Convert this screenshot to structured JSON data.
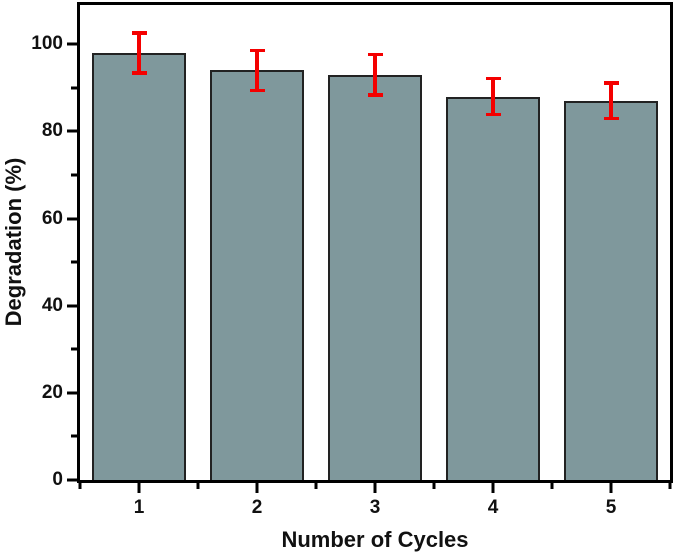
{
  "chart_data": {
    "type": "bar",
    "title": "",
    "xlabel": "Number of Cycles",
    "ylabel": "Degradation (%)",
    "categories": [
      "1",
      "2",
      "3",
      "4",
      "5"
    ],
    "values": [
      98,
      94,
      93,
      88,
      87
    ],
    "error_bars": [
      5,
      5,
      5,
      4.5,
      4.5
    ],
    "xlim": [
      0.5,
      5.5
    ],
    "ylim": [
      0,
      109
    ],
    "y_major_ticks": [
      0,
      20,
      40,
      60,
      80,
      100
    ],
    "y_minor_ticks": [
      10,
      30,
      50,
      70,
      90
    ],
    "x_minor_ticks": [
      0.5,
      1.5,
      2.5,
      3.5,
      4.5,
      5.5
    ],
    "bar_width_units": 0.8,
    "grid": false,
    "legend_position": "none",
    "colors": {
      "bar_fill": "#7f989c",
      "bar_border": "#222222",
      "error_bar": "#f40000",
      "axis": "#000000",
      "text": "#111111",
      "background": "#ffffff"
    }
  }
}
